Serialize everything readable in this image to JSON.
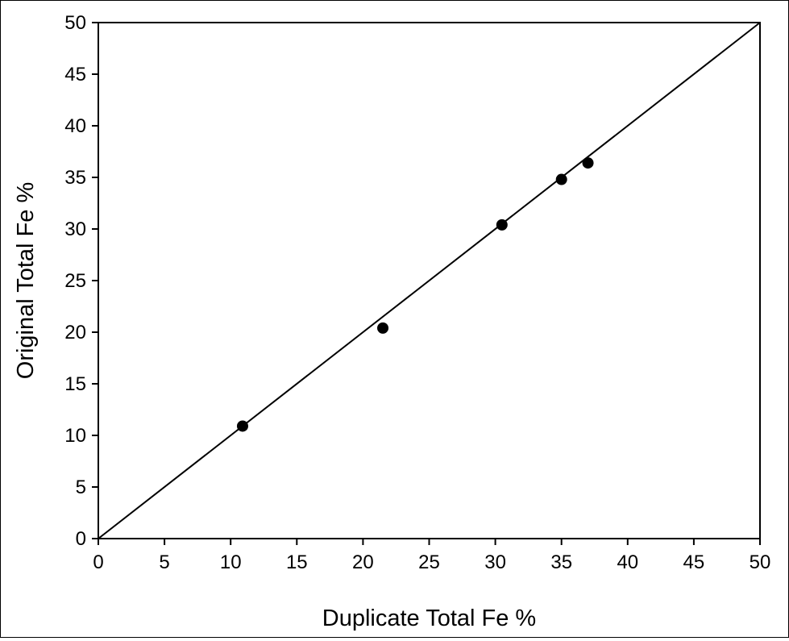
{
  "chart_data": {
    "type": "scatter",
    "xlabel": "Duplicate Total Fe %",
    "ylabel": "Original Total Fe %",
    "xlim": [
      0,
      50
    ],
    "ylim": [
      0,
      50
    ],
    "xticks": [
      0,
      5,
      10,
      15,
      20,
      25,
      30,
      35,
      40,
      45,
      50
    ],
    "yticks": [
      0,
      5,
      10,
      15,
      20,
      25,
      30,
      35,
      40,
      45,
      50
    ],
    "grid": false,
    "legend": "none",
    "series": [
      {
        "type": "scatter",
        "x": [
          10.9,
          21.5,
          30.5,
          35.0,
          37.0
        ],
        "y": [
          10.9,
          20.4,
          30.4,
          34.8,
          36.4
        ],
        "color": "#000000"
      }
    ],
    "reference_line": {
      "x": [
        0,
        50
      ],
      "y": [
        0,
        50
      ],
      "color": "#000000"
    }
  }
}
